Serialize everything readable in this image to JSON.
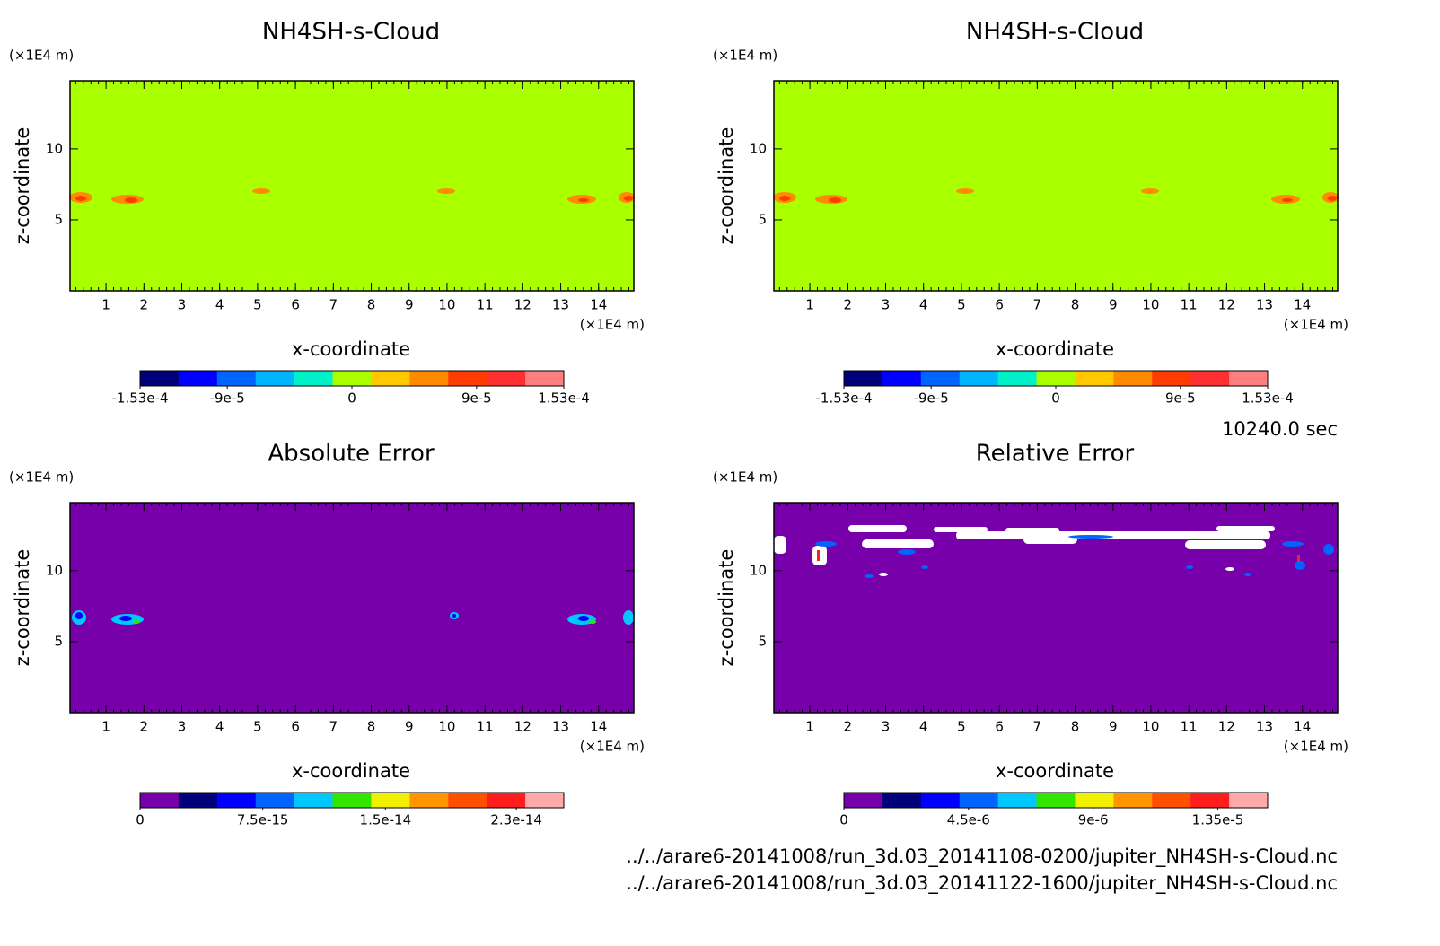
{
  "chart_data": [
    {
      "type": "contour",
      "title": "NH4SH-s-Cloud",
      "x_label": "x-coordinate",
      "y_label": "z-coordinate",
      "x_unit": "(×1E4 m)",
      "y_unit": "(×1E4 m)",
      "xlim": [
        0.05,
        14.93
      ],
      "ylim": [
        0,
        14.8
      ],
      "xticks": [
        1,
        2,
        3,
        4,
        5,
        6,
        7,
        8,
        9,
        10,
        11,
        12,
        13,
        14
      ],
      "yticks": [
        5,
        10
      ],
      "colorbar": {
        "lim": [
          -0.000153,
          0.000153
        ],
        "ticks": [
          {
            "value": -0.000153,
            "label": "-1.53e-4"
          },
          {
            "value": -9e-05,
            "label": "-9e-5"
          },
          0,
          {
            "value": 9e-05,
            "label": "9e-5"
          },
          {
            "value": 0.000153,
            "label": "1.53e-4"
          }
        ],
        "colors": [
          "#00007a",
          "#0000ff",
          "#0064ff",
          "#00b4ff",
          "#00f0c8",
          "#aaff00",
          "#ffc800",
          "#ff8c00",
          "#ff3c00",
          "#ff3030",
          "#ff8080"
        ]
      }
    },
    {
      "type": "contour",
      "title": "NH4SH-s-Cloud",
      "x_label": "x-coordinate",
      "y_label": "z-coordinate",
      "x_unit": "(×1E4 m)",
      "y_unit": "(×1E4 m)",
      "xlim": [
        0.05,
        14.93
      ],
      "ylim": [
        0,
        14.8
      ],
      "xticks": [
        1,
        2,
        3,
        4,
        5,
        6,
        7,
        8,
        9,
        10,
        11,
        12,
        13,
        14
      ],
      "yticks": [
        5,
        10
      ],
      "colorbar": {
        "lim": [
          -0.000153,
          0.000153
        ],
        "ticks": [
          {
            "value": -0.000153,
            "label": "-1.53e-4"
          },
          {
            "value": -9e-05,
            "label": "-9e-5"
          },
          0,
          {
            "value": 9e-05,
            "label": "9e-5"
          },
          {
            "value": 0.000153,
            "label": "1.53e-4"
          }
        ],
        "colors": [
          "#00007a",
          "#0000ff",
          "#0064ff",
          "#00b4ff",
          "#00f0c8",
          "#aaff00",
          "#ffc800",
          "#ff8c00",
          "#ff3c00",
          "#ff3030",
          "#ff8080"
        ]
      }
    },
    {
      "type": "contour",
      "title": "Absolute Error",
      "x_label": "x-coordinate",
      "y_label": "z-coordinate",
      "x_unit": "(×1E4 m)",
      "y_unit": "(×1E4 m)",
      "xlim": [
        0.05,
        14.93
      ],
      "ylim": [
        0,
        14.8
      ],
      "xticks": [
        1,
        2,
        3,
        4,
        5,
        6,
        7,
        8,
        9,
        10,
        11,
        12,
        13,
        14
      ],
      "yticks": [
        5,
        10
      ],
      "colorbar": {
        "lim": [
          0,
          2.59e-14
        ],
        "ticks": [
          0,
          {
            "value": 7.5e-15,
            "label": "7.5e-15"
          },
          {
            "value": 1.5e-14,
            "label": "1.5e-14"
          },
          {
            "value": 2.3e-14,
            "label": "2.3e-14"
          }
        ],
        "colors": [
          "#7800aa",
          "#00007a",
          "#0000ff",
          "#0064ff",
          "#00c8ff",
          "#32e600",
          "#f0f000",
          "#ff9600",
          "#ff5000",
          "#ff1e1e",
          "#ffaaaa"
        ]
      }
    },
    {
      "type": "contour",
      "title": "Relative Error",
      "x_label": "x-coordinate",
      "y_label": "z-coordinate",
      "x_unit": "(×1E4 m)",
      "y_unit": "(×1E4 m)",
      "xlim": [
        0.05,
        14.93
      ],
      "ylim": [
        0,
        14.8
      ],
      "xticks": [
        1,
        2,
        3,
        4,
        5,
        6,
        7,
        8,
        9,
        10,
        11,
        12,
        13,
        14
      ],
      "yticks": [
        5,
        10
      ],
      "colorbar": {
        "lim": [
          0,
          1.53e-05
        ],
        "ticks": [
          0,
          {
            "value": 4.5e-06,
            "label": "4.5e-6"
          },
          {
            "value": 9e-06,
            "label": "9e-6"
          },
          {
            "value": 1.35e-05,
            "label": "1.35e-5"
          }
        ],
        "colors": [
          "#7800aa",
          "#00007a",
          "#0000ff",
          "#0064ff",
          "#00c8ff",
          "#32e600",
          "#f0f000",
          "#ff9600",
          "#ff5000",
          "#ff1e1e",
          "#ffaaaa"
        ]
      }
    }
  ],
  "time": "10240.0 sec",
  "files": [
    "../../arare6-20141008/run_3d.03_20141108-0200/jupiter_NH4SH-s-Cloud.nc",
    "../../arare6-20141008/run_3d.03_20141122-1600/jupiter_NH4SH-s-Cloud.nc"
  ]
}
